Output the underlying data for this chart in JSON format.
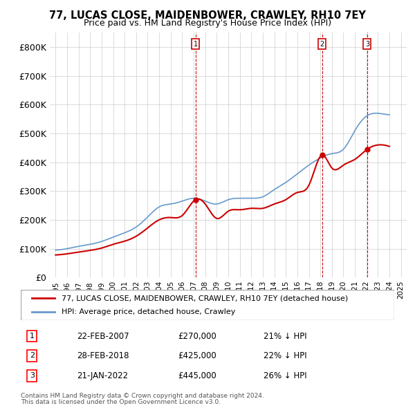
{
  "title": "77, LUCAS CLOSE, MAIDENBOWER, CRAWLEY, RH10 7EY",
  "subtitle": "Price paid vs. HM Land Registry's House Price Index (HPI)",
  "legend_property": "77, LUCAS CLOSE, MAIDENBOWER, CRAWLEY, RH10 7EY (detached house)",
  "legend_hpi": "HPI: Average price, detached house, Crawley",
  "footer1": "Contains HM Land Registry data © Crown copyright and database right 2024.",
  "footer2": "This data is licensed under the Open Government Licence v3.0.",
  "transactions": [
    {
      "num": 1,
      "date": "22-FEB-2007",
      "price": "£270,000",
      "hpi": "21% ↓ HPI"
    },
    {
      "num": 2,
      "date": "28-FEB-2018",
      "price": "£425,000",
      "hpi": "22% ↓ HPI"
    },
    {
      "num": 3,
      "date": "21-JAN-2022",
      "price": "£445,000",
      "hpi": "26% ↓ HPI"
    }
  ],
  "property_color": "#cc0000",
  "hpi_color": "#6699cc",
  "vline_color": "#cc0000",
  "marker_color": "#cc0000",
  "background_color": "#ffffff",
  "grid_color": "#cccccc",
  "ylim": [
    0,
    850000
  ],
  "yticks": [
    0,
    100000,
    200000,
    300000,
    400000,
    500000,
    600000,
    700000,
    800000
  ],
  "ytick_labels": [
    "£0",
    "£100K",
    "£200K",
    "£300K",
    "£400K",
    "£500K",
    "£600K",
    "£700K",
    "£800K"
  ],
  "hpi_data_years": [
    1995,
    1996,
    1997,
    1998,
    1999,
    2000,
    2001,
    2002,
    2003,
    2004,
    2005,
    2006,
    2007,
    2008,
    2009,
    2010,
    2011,
    2012,
    2013,
    2014,
    2015,
    2016,
    2017,
    2018,
    2019,
    2020,
    2021,
    2022,
    2023,
    2024
  ],
  "hpi_values": [
    95000,
    100000,
    108000,
    115000,
    125000,
    140000,
    155000,
    175000,
    210000,
    245000,
    255000,
    265000,
    275000,
    265000,
    255000,
    270000,
    275000,
    275000,
    280000,
    305000,
    330000,
    360000,
    390000,
    415000,
    430000,
    445000,
    510000,
    560000,
    570000,
    565000
  ],
  "property_data": [
    [
      2007.15,
      270000
    ],
    [
      2018.15,
      425000
    ],
    [
      2022.07,
      445000
    ]
  ],
  "vline_dates": [
    2007.15,
    2018.15,
    2022.07
  ],
  "marker_numbers": [
    "1",
    "2",
    "3"
  ],
  "xlim": [
    1994.5,
    2025.5
  ]
}
